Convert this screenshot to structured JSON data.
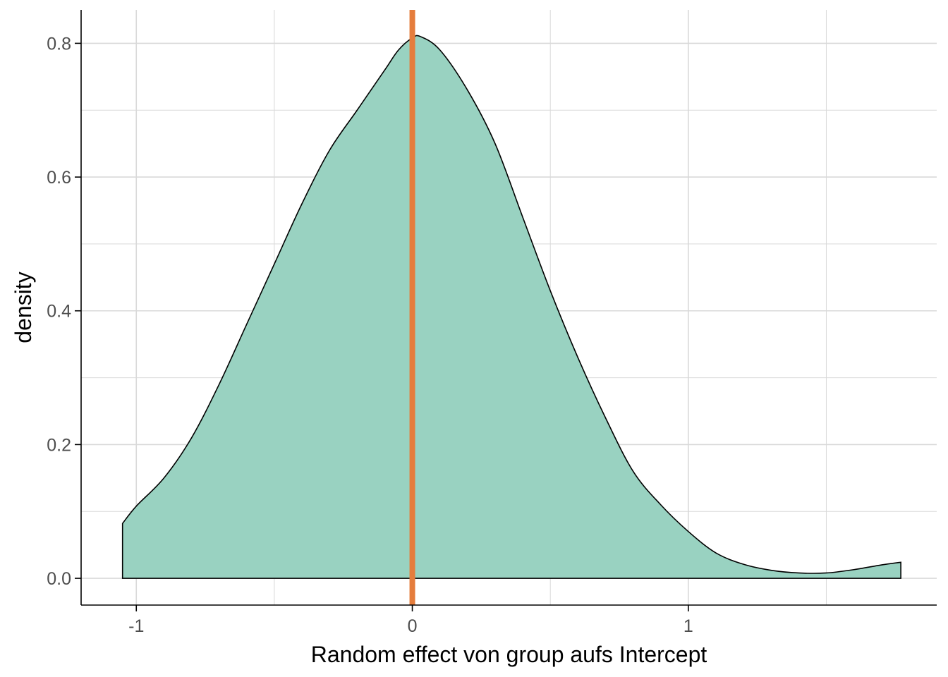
{
  "chart_data": {
    "type": "area",
    "xlabel": "Random effect von group aufs Intercept",
    "ylabel": "density",
    "xlim": [
      -1.2,
      1.9
    ],
    "ylim": [
      -0.04,
      0.85
    ],
    "x_ticks": [
      -1,
      0,
      1
    ],
    "x_tick_labels": [
      "-1",
      "0",
      "1"
    ],
    "y_ticks": [
      0.0,
      0.2,
      0.4,
      0.6,
      0.8
    ],
    "y_tick_labels": [
      "0.0",
      "0.2",
      "0.4",
      "0.6",
      "0.8"
    ],
    "grid": true,
    "legend": "none",
    "series": [
      {
        "x": [
          -1.05,
          -1.0,
          -0.9,
          -0.8,
          -0.7,
          -0.6,
          -0.5,
          -0.4,
          -0.3,
          -0.2,
          -0.1,
          -0.05,
          0.0,
          0.03,
          0.1,
          0.2,
          0.3,
          0.4,
          0.5,
          0.6,
          0.7,
          0.8,
          0.9,
          1.0,
          1.1,
          1.2,
          1.3,
          1.4,
          1.5,
          1.6,
          1.7,
          1.77
        ],
        "y": [
          0.082,
          0.108,
          0.15,
          0.21,
          0.29,
          0.38,
          0.47,
          0.56,
          0.64,
          0.7,
          0.76,
          0.79,
          0.808,
          0.81,
          0.79,
          0.73,
          0.65,
          0.54,
          0.43,
          0.33,
          0.24,
          0.16,
          0.11,
          0.07,
          0.038,
          0.021,
          0.012,
          0.008,
          0.008,
          0.013,
          0.02,
          0.024
        ]
      }
    ],
    "vline": {
      "x": 0.0
    },
    "colors": {
      "fill": "#99d2c1",
      "outline": "#000000",
      "vline": "#e57d3c",
      "grid": "#d9d9d9",
      "axis": "#000000"
    }
  }
}
